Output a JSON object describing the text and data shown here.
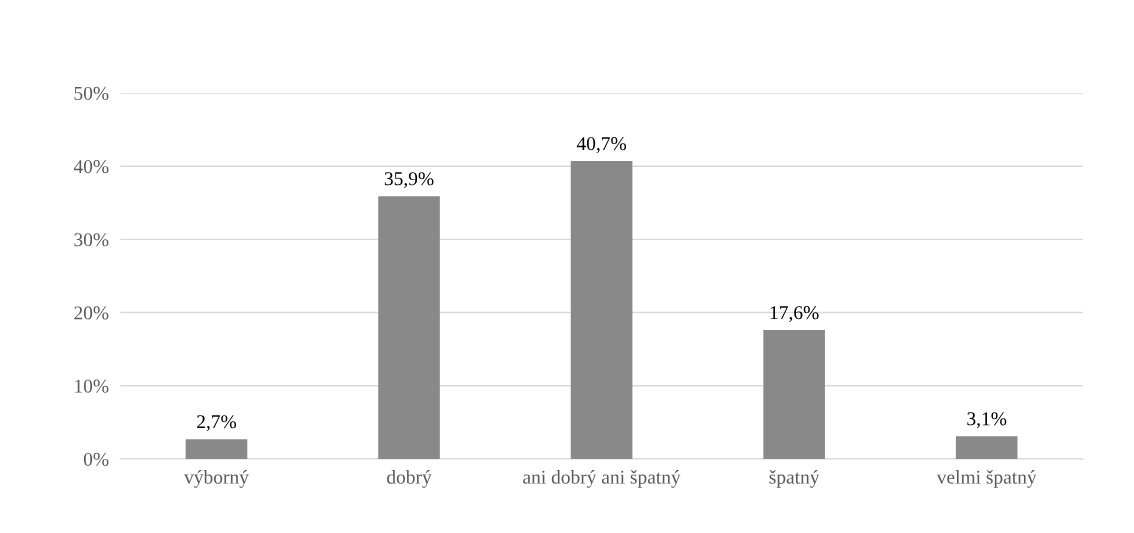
{
  "chart_data": {
    "type": "bar",
    "categories": [
      "výborný",
      "dobrý",
      "ani dobrý ani špatný",
      "špatný",
      "velmi špatný"
    ],
    "values": [
      2.7,
      35.9,
      40.7,
      17.6,
      3.1
    ],
    "value_labels": [
      "2,7%",
      "35,9%",
      "40,7%",
      "17,6%",
      "3,1%"
    ],
    "color": "#898989",
    "ylim": [
      0,
      50
    ],
    "yticks": [
      {
        "value": 0,
        "label": "0%"
      },
      {
        "value": 10,
        "label": "10%"
      },
      {
        "value": 20,
        "label": "20%"
      },
      {
        "value": 30,
        "label": "30%"
      },
      {
        "value": 40,
        "label": "40%"
      },
      {
        "value": 50,
        "label": "50%"
      }
    ],
    "grid": "y"
  }
}
